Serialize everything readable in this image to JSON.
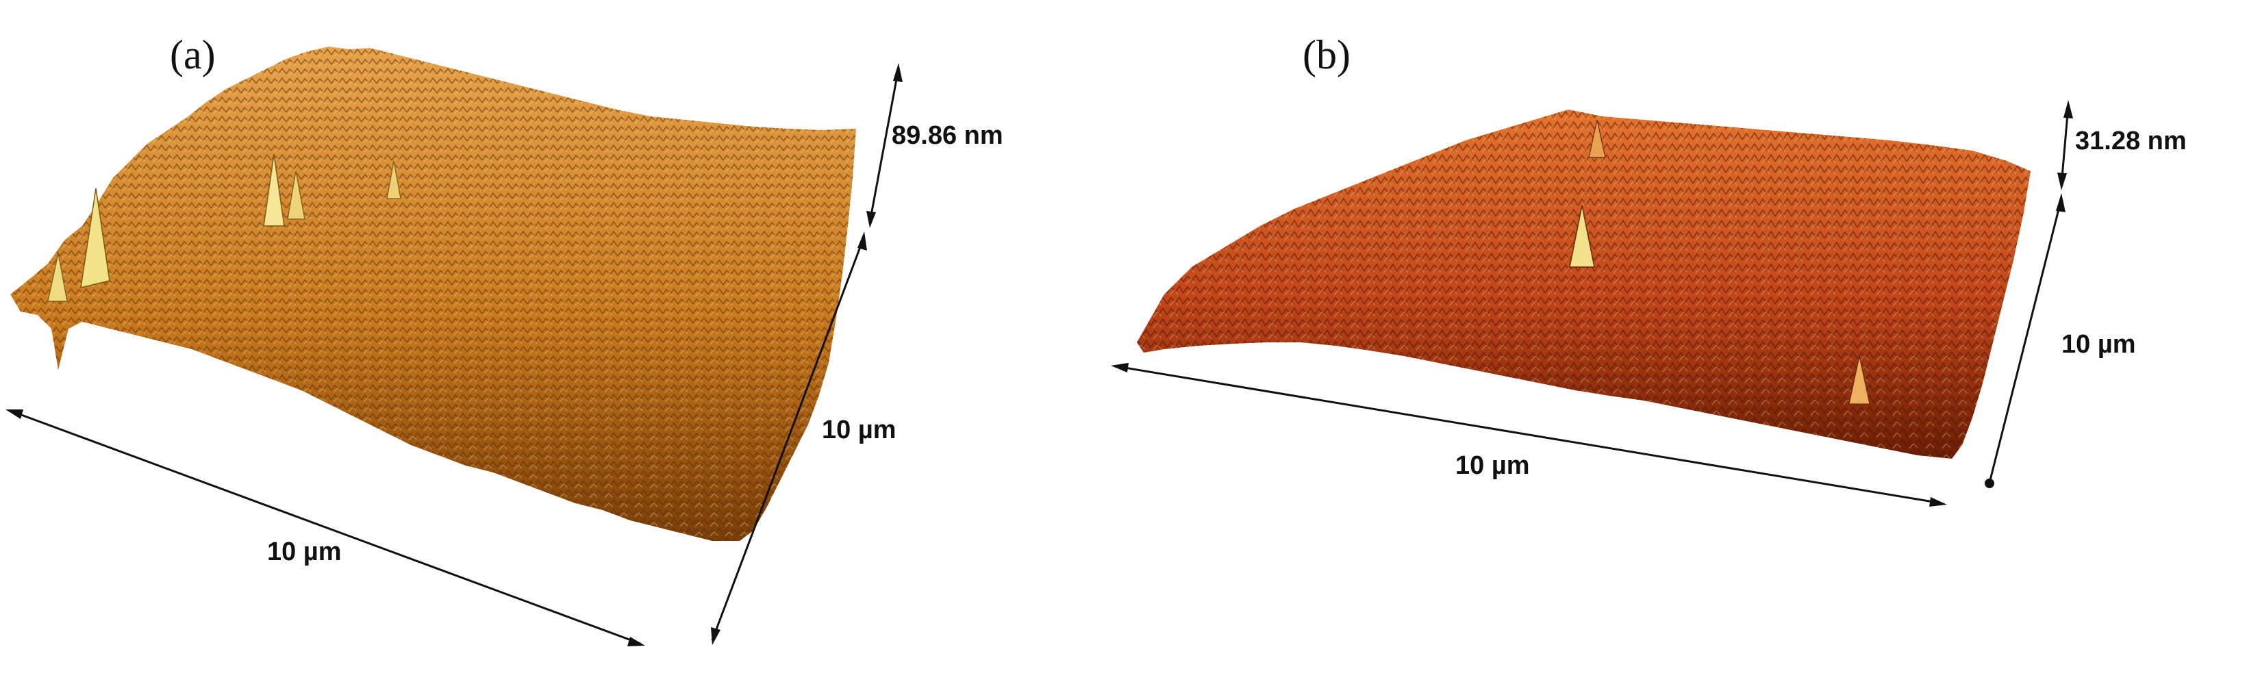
{
  "figure": {
    "panel_a": {
      "label": "(a)",
      "height_scale": "89.86 nm",
      "x_extent": "10 µm",
      "y_extent": "10 µm",
      "surface_colors": [
        "#7a3e08",
        "#c97a1e",
        "#e6a24a",
        "#f4d88a"
      ]
    },
    "panel_b": {
      "label": "(b)",
      "height_scale": "31.28 nm",
      "x_extent": "10 µm",
      "y_extent": "10 µm",
      "surface_colors": [
        "#6a1e05",
        "#c0451a",
        "#e2742e",
        "#f3c36a"
      ]
    }
  }
}
